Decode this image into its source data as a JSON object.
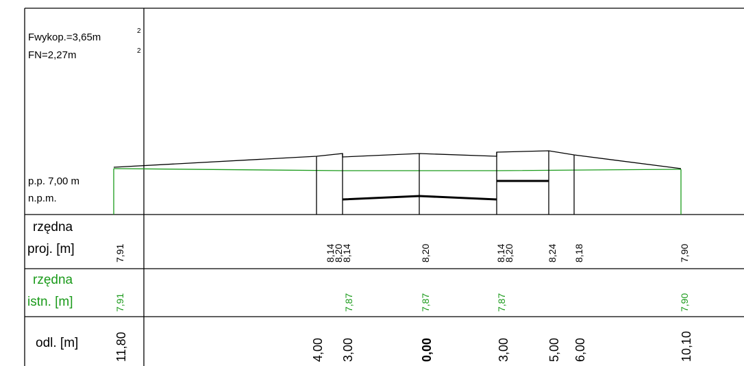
{
  "header": {
    "fwykop": "Fwykop.=3,65m",
    "fn": "FN=2,27m",
    "sup": "2"
  },
  "datum": {
    "line1": "p.p. 7,00 m",
    "line2": "n.p.m."
  },
  "rows": {
    "proj_label_1": "rzędna",
    "proj_label_2": "proj. [m]",
    "istn_label_1": "rzędna",
    "istn_label_2": "istn. [m]",
    "odl_label": "odl. [m]"
  },
  "colors": {
    "design": "#000000",
    "existing": "#1a9a1a"
  },
  "proj_values": [
    "7,91",
    "8,14",
    "8,20",
    "8,14",
    "8,20",
    "8,14",
    "8,20",
    "8,24",
    "8,18",
    "7,90"
  ],
  "istn_values": [
    "7,91",
    "7,87",
    "7,87",
    "7,87",
    "7,90"
  ],
  "odl_values": [
    "11,80",
    "4,00",
    "3,00",
    "0,00",
    "3,00",
    "5,00",
    "6,00",
    "10,10"
  ]
}
